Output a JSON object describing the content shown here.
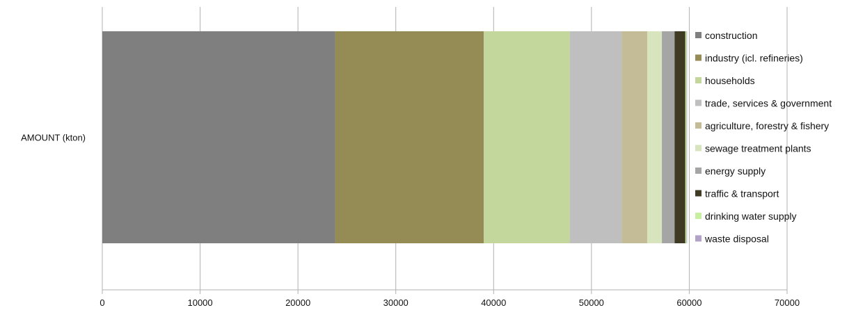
{
  "chart_data": {
    "type": "bar",
    "orientation": "horizontal",
    "stacked": true,
    "categories": [
      "AMOUNT (kton)"
    ],
    "series": [
      {
        "name": "construction",
        "values": [
          23800
        ],
        "color": "#7f7f7f"
      },
      {
        "name": "industry (icl. refineries)",
        "values": [
          15200
        ],
        "color": "#958b55"
      },
      {
        "name": "households",
        "values": [
          8800
        ],
        "color": "#c3d69b"
      },
      {
        "name": "trade, services & government",
        "values": [
          5300
        ],
        "color": "#bfbfbf"
      },
      {
        "name": "agriculture, forestry & fishery",
        "values": [
          2600
        ],
        "color": "#c4bc96"
      },
      {
        "name": "sewage treatment plants",
        "values": [
          1500
        ],
        "color": "#d7e4bd"
      },
      {
        "name": "energy supply",
        "values": [
          1300
        ],
        "color": "#a5a5a5"
      },
      {
        "name": "traffic & transport",
        "values": [
          1100
        ],
        "color": "#3f3a23"
      },
      {
        "name": "drinking water supply",
        "values": [
          120
        ],
        "color": "#c6efa0"
      },
      {
        "name": "waste disposal",
        "values": [
          60
        ],
        "color": "#b3a2c7"
      }
    ],
    "x_ticks": [
      "0",
      "10000",
      "20000",
      "30000",
      "40000",
      "50000",
      "60000",
      "70000"
    ],
    "xlim": [
      0,
      70000
    ],
    "grid": "vertical",
    "legend_position": "right"
  }
}
